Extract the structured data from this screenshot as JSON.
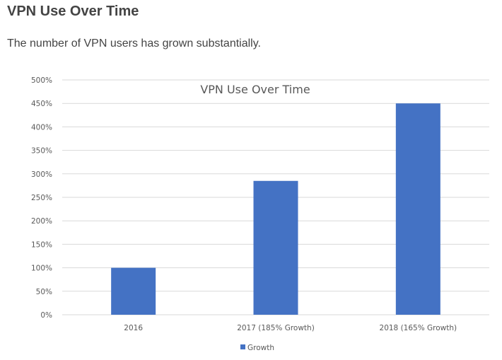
{
  "page": {
    "title": "VPN Use Over Time",
    "subtitle": "The number of VPN users has grown substantially."
  },
  "chart_data": {
    "type": "bar",
    "title": "VPN Use Over Time",
    "categories": [
      "2016",
      "2017 (185% Growth)",
      "2018 (165% Growth)"
    ],
    "series": [
      {
        "name": "Growth",
        "values": [
          100,
          285,
          450
        ],
        "color": "#4472C4"
      }
    ],
    "ylim": [
      0,
      500
    ],
    "y_ticks": [
      "0%",
      "50%",
      "100%",
      "150%",
      "200%",
      "250%",
      "300%",
      "350%",
      "400%",
      "450%",
      "500%"
    ],
    "y_tick_values": [
      0,
      50,
      100,
      150,
      200,
      250,
      300,
      350,
      400,
      450,
      500
    ],
    "grid": true,
    "legend_position": "bottom",
    "xlabel": "",
    "ylabel": "",
    "gridline_color": "#d9d9d9"
  }
}
